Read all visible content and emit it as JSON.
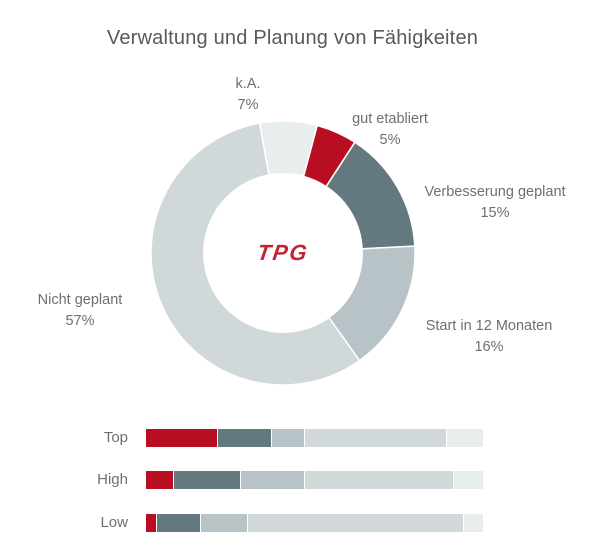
{
  "title": "Verwaltung und Planung von Fähigkeiten",
  "logo": {
    "text": "TPG"
  },
  "colors": {
    "red": "#b90d22",
    "dark_slate": "#64787f",
    "medium_gray": "#b7c3c6",
    "light_gray": "#d0d8da",
    "lightest_gray": "#e8edee",
    "title_text": "#595959",
    "label_text": "#6f6f6f",
    "logo_red": "#c32333"
  },
  "chart_data": [
    {
      "type": "pie",
      "subtype": "donut",
      "title": "Verwaltung und Planung von Fähigkeiten",
      "start_angle_deg": 15,
      "direction": "clockwise",
      "inner_radius_ratio": 0.6,
      "slices": [
        {
          "key": "gut-etabliert",
          "name": "gut etabliert",
          "value": 5,
          "pct_label": "5%",
          "color_key": "red"
        },
        {
          "key": "verbesserung-geplant",
          "name": "Verbesserung geplant",
          "value": 15,
          "pct_label": "15%",
          "color_key": "dark_slate"
        },
        {
          "key": "start-in-12-monaten",
          "name": "Start in 12 Monaten",
          "value": 16,
          "pct_label": "16%",
          "color_key": "medium_gray"
        },
        {
          "key": "nicht-geplant",
          "name": "Nicht geplant",
          "value": 57,
          "pct_label": "57%",
          "color_key": "light_gray"
        },
        {
          "key": "ka",
          "name": "k.A.",
          "value": 7,
          "pct_label": "7%",
          "color_key": "lightest_gray"
        }
      ]
    },
    {
      "type": "bar",
      "subtype": "stacked-horizontal",
      "categories": [
        "Top",
        "High",
        "Low"
      ],
      "xlim": [
        0,
        100
      ],
      "grid": false,
      "legend": false,
      "series": [
        {
          "key": "gut-etabliert",
          "name": "gut etabliert",
          "color_key": "red",
          "values": [
            21,
            8,
            3
          ]
        },
        {
          "key": "verbesserung-geplant",
          "name": "Verbesserung geplant",
          "color_key": "dark_slate",
          "values": [
            16,
            20,
            13
          ]
        },
        {
          "key": "start-in-12-monaten",
          "name": "Start in 12 Monaten",
          "color_key": "medium_gray",
          "values": [
            10,
            19,
            14
          ]
        },
        {
          "key": "nicht-geplant",
          "name": "Nicht geplant",
          "color_key": "light_gray",
          "values": [
            42,
            44,
            64
          ]
        },
        {
          "key": "ka",
          "name": "k.A.",
          "color_key": "lightest_gray",
          "values": [
            11,
            9,
            6
          ]
        }
      ]
    }
  ]
}
